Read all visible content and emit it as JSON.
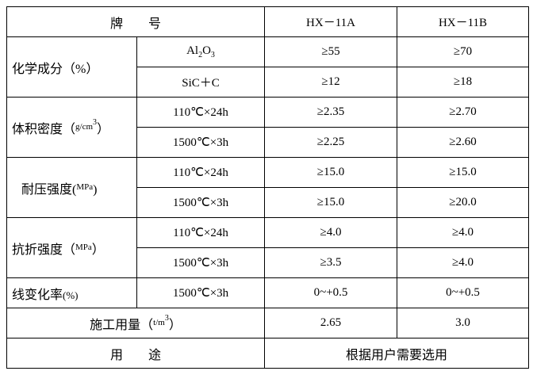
{
  "header": {
    "grade": "牌　　号",
    "col1": "HX－11A",
    "col2": "HX－11B"
  },
  "chemical": {
    "label": "化学成分（%）",
    "rows": [
      {
        "item": [
          "Al",
          "2",
          "O",
          "3"
        ],
        "a": "≥55",
        "b": "≥70"
      },
      {
        "item": "SiC＋C",
        "a": "≥12",
        "b": "≥18"
      }
    ]
  },
  "density": {
    "label": [
      "体积密度（",
      "g/cm",
      "3",
      "）"
    ],
    "rows": [
      {
        "cond": "110℃×24h",
        "a": "≥2.35",
        "b": "≥2.70"
      },
      {
        "cond": "1500℃×3h",
        "a": "≥2.25",
        "b": "≥2.60"
      }
    ]
  },
  "compressive": {
    "label": [
      "耐压强度(",
      "MPa",
      ")"
    ],
    "rows": [
      {
        "cond": "110℃×24h",
        "a": "≥15.0",
        "b": "≥15.0"
      },
      {
        "cond": "1500℃×3h",
        "a": "≥15.0",
        "b": "≥20.0"
      }
    ]
  },
  "flexural": {
    "label": [
      "抗折强度（",
      "MPa",
      "）"
    ],
    "rows": [
      {
        "cond": "110℃×24h",
        "a": "≥4.0",
        "b": "≥4.0"
      },
      {
        "cond": "1500℃×3h",
        "a": "≥3.5",
        "b": "≥4.0"
      }
    ]
  },
  "linear_change": {
    "label": [
      "线变化率",
      "(%)"
    ],
    "cond": "1500℃×3h",
    "a": "0~+0.5",
    "b": "0~+0.5"
  },
  "dosage": {
    "label": [
      "施工用量（",
      "t/m",
      "3",
      "）"
    ],
    "a": "2.65",
    "b": "3.0"
  },
  "usage": {
    "label": "用　　途",
    "value": "根据用户需要选用"
  }
}
